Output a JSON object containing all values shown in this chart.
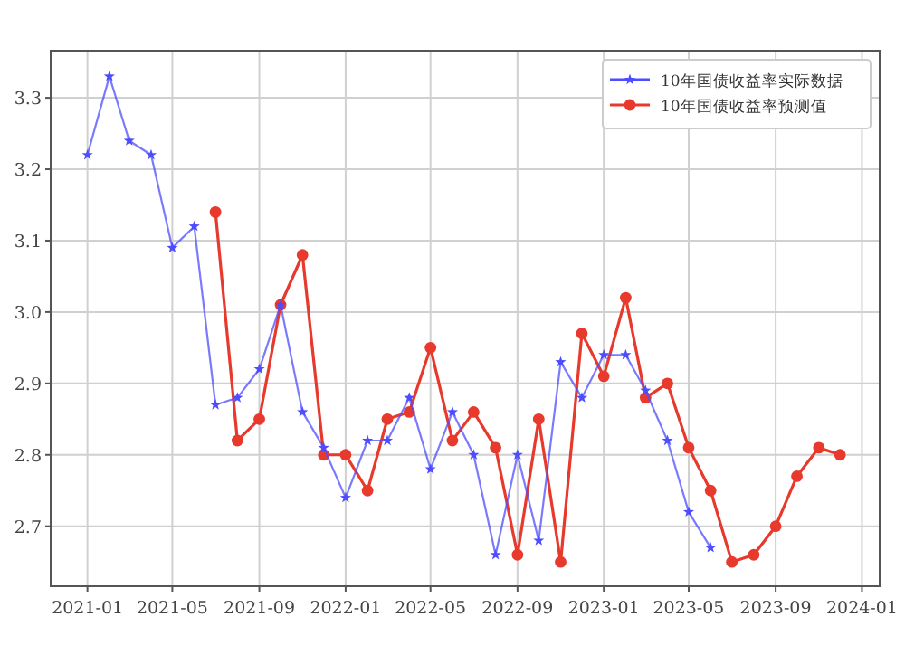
{
  "chart_data": {
    "type": "line",
    "grid": true,
    "legend": "top right",
    "line_style": "solid",
    "xlim": [
      "2020-11-10",
      "2024-01-26"
    ],
    "xticks": [
      "2021-01",
      "2021-05",
      "2021-09",
      "2022-01",
      "2022-05",
      "2022-09",
      "2023-01",
      "2023-05",
      "2023-09",
      "2024-01"
    ],
    "ylim": [
      2.616,
      3.366
    ],
    "yticks": [
      2.7,
      2.8,
      2.9,
      {
        "value": 3,
        "label": "3.0"
      },
      3.1,
      3.2,
      3.3
    ],
    "series": [
      {
        "name": "10年国债收益率实际数据",
        "color": "#4d4dff",
        "marker": "star",
        "x": [
          "2021-01",
          "2021-02",
          "2021-03",
          "2021-04",
          "2021-05",
          "2021-06",
          "2021-07",
          "2021-08",
          "2021-09",
          "2021-10",
          "2021-11",
          "2021-12",
          "2022-01",
          "2022-02",
          "2022-03",
          "2022-04",
          "2022-05",
          "2022-06",
          "2022-07",
          "2022-08",
          "2022-09",
          "2022-10",
          "2022-11",
          "2022-12",
          "2023-01",
          "2023-02",
          "2023-03",
          "2023-04",
          "2023-05",
          "2023-06"
        ],
        "values": [
          3.22,
          3.33,
          3.24,
          3.22,
          3.09,
          3.12,
          2.87,
          2.88,
          2.92,
          3.01,
          2.86,
          2.81,
          2.74,
          2.82,
          2.82,
          2.88,
          2.78,
          2.86,
          2.8,
          2.66,
          2.8,
          2.68,
          2.93,
          2.88,
          2.94,
          2.94,
          2.89,
          2.82,
          2.72,
          2.67
        ]
      },
      {
        "name": "10年国债收益率预测值",
        "color": "#e8392d",
        "marker": "circle",
        "x": [
          "2021-07",
          "2021-08",
          "2021-09",
          "2021-10",
          "2021-11",
          "2021-12",
          "2022-01",
          "2022-02",
          "2022-03",
          "2022-04",
          "2022-05",
          "2022-06",
          "2022-07",
          "2022-08",
          "2022-09",
          "2022-10",
          "2022-11",
          "2022-12",
          "2023-01",
          "2023-02",
          "2023-03",
          "2023-04",
          "2023-05",
          "2023-06",
          "2023-07",
          "2023-08",
          "2023-09",
          "2023-10",
          "2023-11",
          "2023-12"
        ],
        "values": [
          3.14,
          2.82,
          2.85,
          3.01,
          3.08,
          2.8,
          2.8,
          2.75,
          2.85,
          2.86,
          2.95,
          2.82,
          2.86,
          2.81,
          2.66,
          2.85,
          2.65,
          2.97,
          2.91,
          3.02,
          2.88,
          2.9,
          2.81,
          2.75,
          2.65,
          2.66,
          2.7,
          2.77,
          2.81,
          2.8
        ]
      }
    ]
  }
}
